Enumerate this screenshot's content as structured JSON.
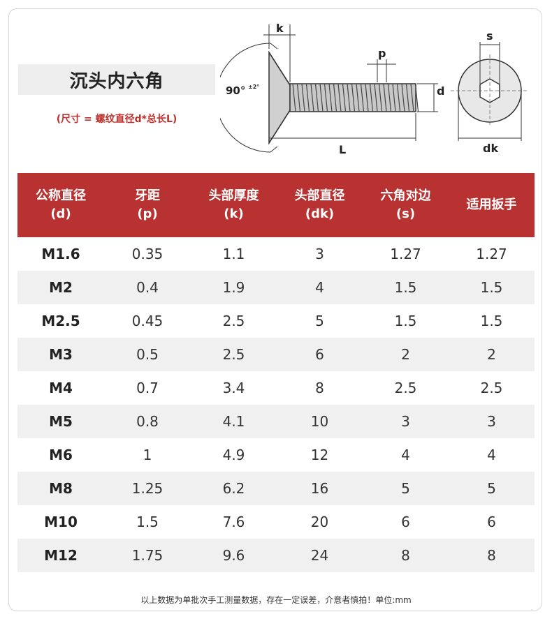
{
  "title": "沉头内六角",
  "size_note": "(尺寸 = 螺纹直径d*总长L)",
  "diagram": {
    "label_k": "k",
    "label_p": "p",
    "label_d": "d",
    "label_L": "L",
    "label_s": "s",
    "label_dk": "dk",
    "angle": "90°",
    "angle_tol": "±2°"
  },
  "table": {
    "headers": [
      {
        "line1": "公称直径",
        "line2": "(d)"
      },
      {
        "line1": "牙距",
        "line2": "(p)"
      },
      {
        "line1": "头部厚度",
        "line2": "(k)"
      },
      {
        "line1": "头部直径",
        "line2": "(dk)"
      },
      {
        "line1": "六角对边",
        "line2": "(s)"
      },
      {
        "line1": "适用扳手",
        "line2": ""
      }
    ],
    "rows": [
      [
        "M1.6",
        "0.35",
        "1.1",
        "3",
        "1.27",
        "1.27"
      ],
      [
        "M2",
        "0.4",
        "1.9",
        "4",
        "1.5",
        "1.5"
      ],
      [
        "M2.5",
        "0.45",
        "2.5",
        "5",
        "1.5",
        "1.5"
      ],
      [
        "M3",
        "0.5",
        "2.5",
        "6",
        "2",
        "2"
      ],
      [
        "M4",
        "0.7",
        "3.4",
        "8",
        "2.5",
        "2.5"
      ],
      [
        "M5",
        "0.8",
        "4.1",
        "10",
        "3",
        "3"
      ],
      [
        "M6",
        "1",
        "4.9",
        "12",
        "4",
        "4"
      ],
      [
        "M8",
        "1.25",
        "6.2",
        "16",
        "5",
        "5"
      ],
      [
        "M10",
        "1.5",
        "7.6",
        "20",
        "6",
        "6"
      ],
      [
        "M12",
        "1.75",
        "9.6",
        "24",
        "8",
        "8"
      ]
    ]
  },
  "footnote": "以上数据为单批次手工测量数据，存在一定误差，介意者慎拍！单位:mm",
  "colors": {
    "header_bg": "#b83232",
    "note_red": "#c0302c",
    "stripe": "#f0f0f0"
  }
}
